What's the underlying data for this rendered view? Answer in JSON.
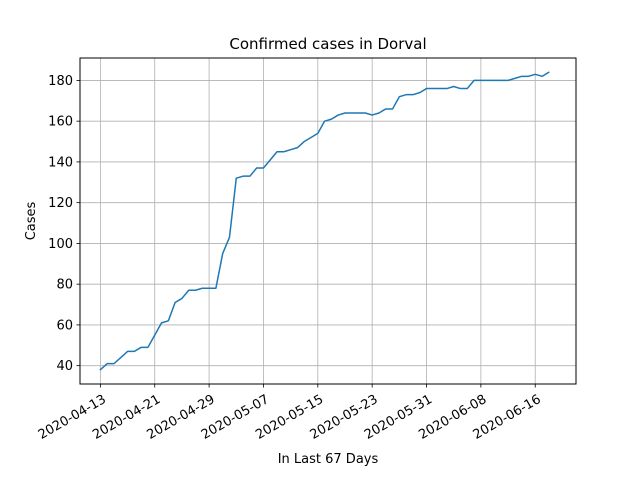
{
  "chart_data": {
    "type": "line",
    "title": "Confirmed cases in Dorval",
    "xlabel": "In Last 67 Days",
    "ylabel": "Cases",
    "grid": true,
    "line_color": "#1f77b4",
    "grid_color": "#b0b0b0",
    "xlim": [
      "2020-04-10",
      "2020-06-22"
    ],
    "ylim": [
      31,
      191
    ],
    "x_ticks": [
      "2020-04-13",
      "2020-04-21",
      "2020-04-29",
      "2020-05-07",
      "2020-05-15",
      "2020-05-23",
      "2020-05-31",
      "2020-06-08",
      "2020-06-16"
    ],
    "y_ticks": [
      40,
      60,
      80,
      100,
      120,
      140,
      160,
      180
    ],
    "series": [
      {
        "x": [
          "2020-04-13",
          "2020-04-14",
          "2020-04-15",
          "2020-04-16",
          "2020-04-17",
          "2020-04-18",
          "2020-04-19",
          "2020-04-20",
          "2020-04-21",
          "2020-04-22",
          "2020-04-23",
          "2020-04-24",
          "2020-04-25",
          "2020-04-26",
          "2020-04-27",
          "2020-04-28",
          "2020-04-29",
          "2020-04-30",
          "2020-05-01",
          "2020-05-02",
          "2020-05-03",
          "2020-05-04",
          "2020-05-05",
          "2020-05-06",
          "2020-05-07",
          "2020-05-08",
          "2020-05-09",
          "2020-05-10",
          "2020-05-11",
          "2020-05-12",
          "2020-05-13",
          "2020-05-14",
          "2020-05-15",
          "2020-05-16",
          "2020-05-17",
          "2020-05-18",
          "2020-05-19",
          "2020-05-20",
          "2020-05-21",
          "2020-05-22",
          "2020-05-23",
          "2020-05-24",
          "2020-05-25",
          "2020-05-26",
          "2020-05-27",
          "2020-05-28",
          "2020-05-29",
          "2020-05-30",
          "2020-05-31",
          "2020-06-01",
          "2020-06-02",
          "2020-06-03",
          "2020-06-04",
          "2020-06-05",
          "2020-06-06",
          "2020-06-07",
          "2020-06-08",
          "2020-06-09",
          "2020-06-10",
          "2020-06-11",
          "2020-06-12",
          "2020-06-13",
          "2020-06-14",
          "2020-06-15",
          "2020-06-16",
          "2020-06-17",
          "2020-06-18"
        ],
        "y": [
          38,
          41,
          41,
          44,
          47,
          47,
          49,
          49,
          55,
          61,
          62,
          71,
          73,
          77,
          77,
          78,
          78,
          78,
          95,
          103,
          132,
          133,
          133,
          137,
          137,
          141,
          145,
          145,
          146,
          147,
          150,
          152,
          154,
          160,
          161,
          163,
          164,
          164,
          164,
          164,
          163,
          164,
          166,
          166,
          172,
          173,
          173,
          174,
          176,
          176,
          176,
          176,
          177,
          176,
          176,
          180,
          180,
          180,
          180,
          180,
          180,
          181,
          182,
          182,
          183,
          182,
          184
        ]
      }
    ]
  }
}
